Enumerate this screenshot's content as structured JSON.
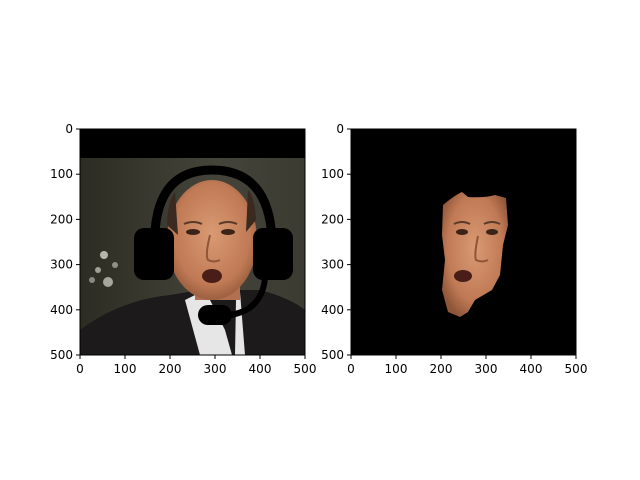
{
  "figure": {
    "panels": [
      {
        "name": "original-with-headset",
        "x_ticks": [
          "0",
          "100",
          "200",
          "300",
          "400",
          "500"
        ],
        "y_ticks": [
          "0",
          "100",
          "200",
          "300",
          "400",
          "500"
        ],
        "image": "photo of a man's face wearing a drawn black headset overlay"
      },
      {
        "name": "segmented-face",
        "x_ticks": [
          "0",
          "100",
          "200",
          "300",
          "400",
          "500"
        ],
        "y_ticks": [
          "0",
          "100",
          "200",
          "300",
          "400",
          "500"
        ],
        "image": "segmented face region on a black background"
      }
    ],
    "axis_range": [
      0,
      500
    ],
    "colors": {
      "skin": "#c98a64",
      "dark_bg": "#3a3a2e",
      "black": "#000000",
      "suit": "#1c1a1a",
      "shirt": "#e8e8e8"
    }
  }
}
